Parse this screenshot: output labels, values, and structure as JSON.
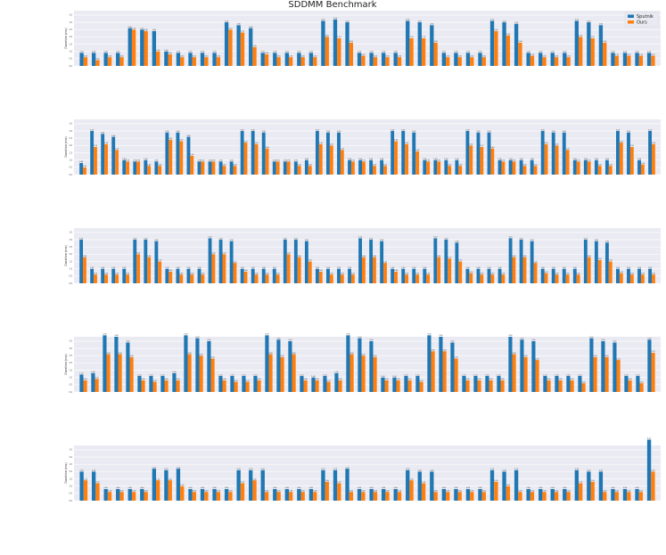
{
  "chart_data": {
    "type": "bar",
    "title": "SDDMM Benchmark",
    "ylabel": "Duration (ms)",
    "ylim": [
      0,
      3.8
    ],
    "legend_position": "top-right",
    "grid": true,
    "colors": {
      "sputnik": "#1f77b4",
      "ours": "#ff7f0e",
      "background": "#eaeaf2"
    },
    "series_names": [
      "Sputnik",
      "Ours"
    ],
    "panels": [
      {
        "n": 48,
        "sputnik": [
          0.9,
          0.9,
          0.9,
          0.9,
          2.6,
          2.5,
          2.4,
          1.0,
          0.9,
          0.9,
          0.9,
          0.9,
          3.0,
          2.8,
          2.6,
          0.9,
          0.9,
          0.9,
          0.9,
          0.9,
          3.1,
          3.2,
          3.0,
          0.9,
          0.9,
          0.9,
          0.9,
          3.1,
          3.0,
          2.8,
          0.9,
          0.9,
          0.9,
          0.9,
          3.1,
          3.0,
          2.9,
          0.9,
          0.9,
          0.9,
          0.9,
          3.1,
          3.0,
          2.8,
          0.9,
          0.9,
          0.9,
          0.9
        ],
        "ours": [
          0.6,
          0.4,
          0.6,
          0.6,
          2.5,
          2.4,
          1.0,
          0.8,
          0.6,
          0.6,
          0.6,
          0.6,
          2.5,
          2.3,
          1.3,
          0.8,
          0.6,
          0.6,
          0.6,
          0.6,
          2.0,
          1.9,
          1.6,
          0.7,
          0.6,
          0.6,
          0.6,
          1.9,
          1.9,
          1.6,
          0.6,
          0.6,
          0.6,
          0.6,
          2.4,
          2.1,
          1.6,
          0.7,
          0.6,
          0.6,
          0.6,
          2.0,
          1.9,
          1.6,
          0.7,
          0.7,
          0.7,
          0.7
        ]
      },
      {
        "n": 54,
        "sputnik": [
          0.8,
          3.0,
          2.8,
          2.6,
          1.0,
          0.9,
          1.0,
          0.9,
          2.9,
          2.9,
          2.6,
          0.9,
          0.9,
          0.9,
          0.9,
          3.0,
          3.0,
          2.9,
          0.9,
          0.9,
          0.9,
          1.0,
          3.0,
          2.9,
          2.9,
          1.0,
          1.0,
          1.0,
          1.0,
          3.0,
          3.0,
          2.9,
          1.0,
          1.0,
          1.0,
          1.0,
          3.0,
          2.9,
          2.9,
          1.0,
          1.0,
          1.0,
          1.0,
          3.0,
          2.9,
          2.9,
          1.0,
          1.0,
          1.0,
          1.0,
          3.0,
          2.9,
          1.0,
          3.0
        ],
        "ours": [
          0.5,
          1.9,
          2.1,
          1.7,
          0.9,
          0.9,
          0.6,
          0.6,
          2.4,
          2.3,
          1.3,
          0.9,
          0.9,
          0.6,
          0.6,
          2.2,
          2.1,
          1.8,
          0.9,
          0.9,
          0.6,
          0.6,
          2.1,
          2.0,
          1.7,
          0.9,
          0.9,
          0.6,
          0.6,
          2.3,
          2.1,
          1.6,
          0.9,
          0.9,
          0.6,
          0.6,
          2.0,
          1.9,
          1.8,
          0.9,
          0.9,
          0.6,
          0.6,
          2.1,
          2.0,
          1.7,
          0.9,
          0.9,
          0.6,
          0.6,
          2.2,
          1.9,
          0.7,
          2.1
        ]
      },
      {
        "n": 54,
        "sputnik": [
          3.0,
          1.0,
          1.0,
          1.0,
          1.0,
          3.0,
          3.0,
          2.9,
          1.0,
          1.0,
          1.0,
          1.0,
          3.1,
          3.0,
          2.9,
          1.0,
          1.0,
          1.0,
          1.0,
          3.0,
          3.0,
          2.9,
          1.0,
          1.0,
          1.0,
          1.0,
          3.1,
          3.0,
          2.9,
          1.0,
          1.0,
          1.0,
          1.0,
          3.1,
          3.0,
          2.8,
          1.0,
          1.0,
          1.0,
          1.0,
          3.1,
          3.0,
          2.9,
          1.0,
          1.0,
          1.0,
          1.0,
          3.0,
          2.9,
          2.8,
          1.0,
          1.0,
          1.0,
          1.0
        ],
        "ours": [
          1.8,
          0.6,
          0.6,
          0.6,
          0.6,
          2.0,
          1.8,
          1.5,
          0.8,
          0.6,
          0.6,
          0.6,
          2.0,
          2.0,
          1.4,
          0.8,
          0.6,
          0.6,
          0.6,
          2.0,
          1.8,
          1.5,
          0.8,
          0.6,
          0.6,
          0.6,
          1.8,
          1.8,
          1.4,
          0.8,
          0.6,
          0.6,
          0.6,
          1.8,
          1.7,
          1.5,
          0.7,
          0.6,
          0.6,
          0.6,
          1.8,
          1.8,
          1.4,
          0.7,
          0.6,
          0.6,
          0.6,
          1.8,
          1.6,
          1.5,
          0.7,
          0.6,
          0.6,
          0.6
        ]
      },
      {
        "n": 50,
        "sputnik": [
          1.2,
          1.3,
          3.9,
          3.8,
          3.4,
          1.1,
          1.1,
          1.1,
          1.3,
          3.9,
          3.7,
          3.5,
          1.1,
          1.1,
          1.1,
          1.1,
          3.9,
          3.6,
          3.5,
          1.1,
          1.0,
          1.1,
          1.3,
          3.9,
          3.7,
          3.5,
          1.0,
          1.0,
          1.1,
          1.1,
          3.9,
          3.8,
          3.4,
          1.1,
          1.1,
          1.1,
          1.1,
          3.8,
          3.6,
          3.5,
          1.1,
          1.1,
          1.1,
          1.1,
          3.7,
          3.5,
          3.4,
          1.1,
          1.1,
          3.6
        ],
        "ours": [
          0.8,
          0.9,
          2.6,
          2.6,
          2.4,
          0.8,
          0.7,
          0.8,
          0.8,
          2.6,
          2.5,
          2.3,
          0.8,
          0.7,
          0.7,
          0.8,
          2.6,
          2.4,
          2.6,
          0.8,
          0.8,
          0.7,
          0.8,
          2.6,
          2.5,
          2.4,
          0.8,
          0.8,
          0.8,
          0.7,
          2.8,
          2.8,
          2.3,
          0.8,
          0.8,
          0.8,
          0.8,
          2.6,
          2.4,
          2.2,
          0.8,
          0.8,
          0.8,
          0.6,
          2.4,
          2.4,
          2.2,
          0.8,
          0.6,
          2.7
        ]
      },
      {
        "n": 48,
        "sputnik": [
          2.0,
          2.0,
          0.8,
          0.8,
          0.8,
          0.8,
          2.2,
          2.1,
          2.2,
          0.8,
          0.8,
          0.8,
          0.8,
          2.1,
          2.1,
          2.1,
          0.8,
          0.8,
          0.8,
          0.8,
          2.1,
          2.1,
          2.2,
          0.8,
          0.8,
          0.8,
          0.8,
          2.1,
          2.0,
          2.0,
          0.8,
          0.8,
          0.8,
          0.8,
          2.1,
          2.0,
          2.1,
          0.8,
          0.8,
          0.8,
          0.8,
          2.1,
          2.0,
          2.0,
          0.8,
          0.8,
          0.8,
          4.2
        ],
        "ours": [
          1.4,
          1.2,
          0.6,
          0.6,
          0.6,
          0.6,
          1.4,
          1.4,
          1.0,
          0.6,
          0.6,
          0.6,
          0.6,
          1.2,
          1.4,
          0.6,
          0.6,
          0.6,
          0.6,
          0.6,
          1.3,
          1.2,
          0.6,
          0.6,
          0.6,
          0.6,
          0.6,
          1.4,
          1.2,
          0.6,
          0.6,
          0.6,
          0.6,
          0.6,
          1.3,
          1.0,
          0.6,
          0.6,
          0.6,
          0.6,
          0.6,
          1.2,
          1.3,
          0.6,
          0.6,
          0.6,
          0.6,
          2.0
        ]
      }
    ]
  }
}
